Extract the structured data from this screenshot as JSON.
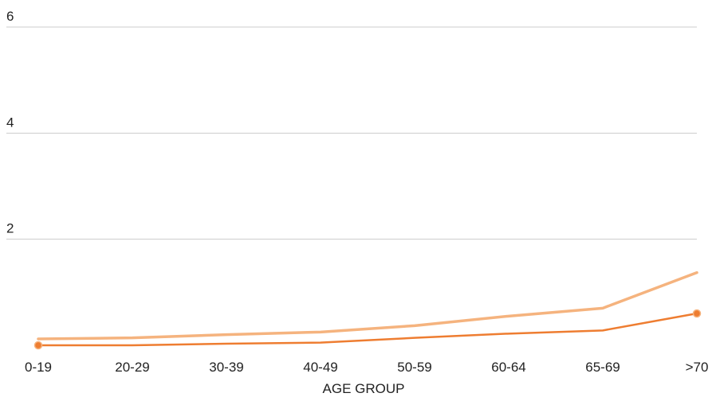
{
  "chart_data": {
    "type": "line",
    "title": "",
    "xlabel": "AGE GROUP",
    "ylabel": "",
    "categories": [
      "0-19",
      "20-29",
      "30-39",
      "40-49",
      "50-59",
      "60-64",
      "65-69",
      ">70"
    ],
    "yticks": [
      2,
      4,
      6
    ],
    "ylim": [
      0,
      6
    ],
    "grid": true,
    "series": [
      {
        "color": "#f5b37e",
        "values": [
          0.12,
          0.14,
          0.2,
          0.25,
          0.37,
          0.55,
          0.7,
          1.37
        ]
      },
      {
        "color": "#ee7d31",
        "values": [
          0.0,
          0.0,
          0.03,
          0.05,
          0.14,
          0.22,
          0.28,
          0.6
        ],
        "markers": "endpoints"
      }
    ]
  }
}
